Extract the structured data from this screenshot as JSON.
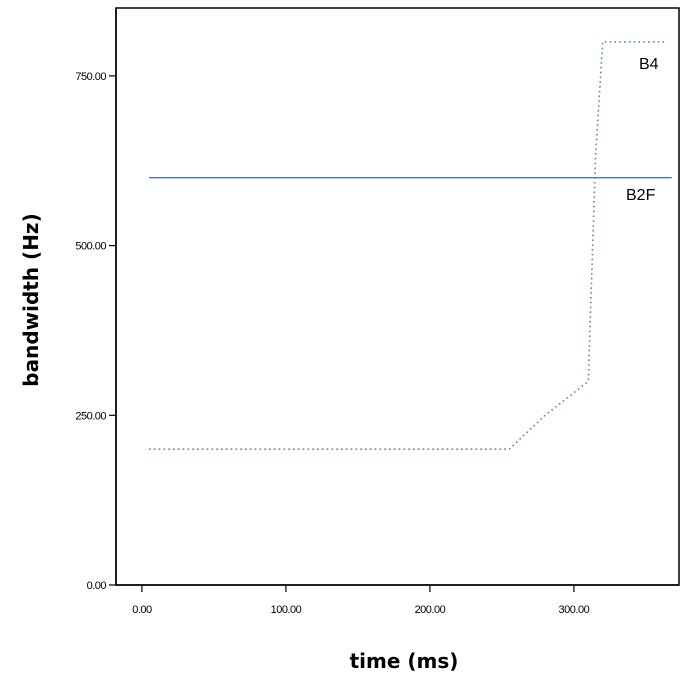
{
  "chart_data": {
    "type": "line",
    "title": "",
    "xlabel": "time (ms)",
    "ylabel": "bandwidth (Hz)",
    "xlim": [
      -18,
      373
    ],
    "ylim": [
      0,
      850
    ],
    "x_ticks": [
      0,
      100,
      200,
      300
    ],
    "x_tick_labels": [
      "0.00",
      "100.00",
      "200.00",
      "300.00"
    ],
    "y_ticks": [
      0,
      250,
      500,
      750
    ],
    "y_tick_labels": [
      "0.00",
      "250.00",
      "500.00",
      "750.00"
    ],
    "grid": false,
    "series": [
      {
        "name": "B4",
        "style": "dotted",
        "color": "#5b83c5",
        "x": [
          5,
          255,
          280,
          310,
          315,
          320,
          365
        ],
        "y": [
          200,
          200,
          250,
          300,
          630,
          800,
          800
        ]
      },
      {
        "name": "B2F",
        "style": "solid",
        "color": "#4a72c4",
        "x": [
          5,
          368
        ],
        "y": [
          600,
          600
        ]
      }
    ]
  }
}
